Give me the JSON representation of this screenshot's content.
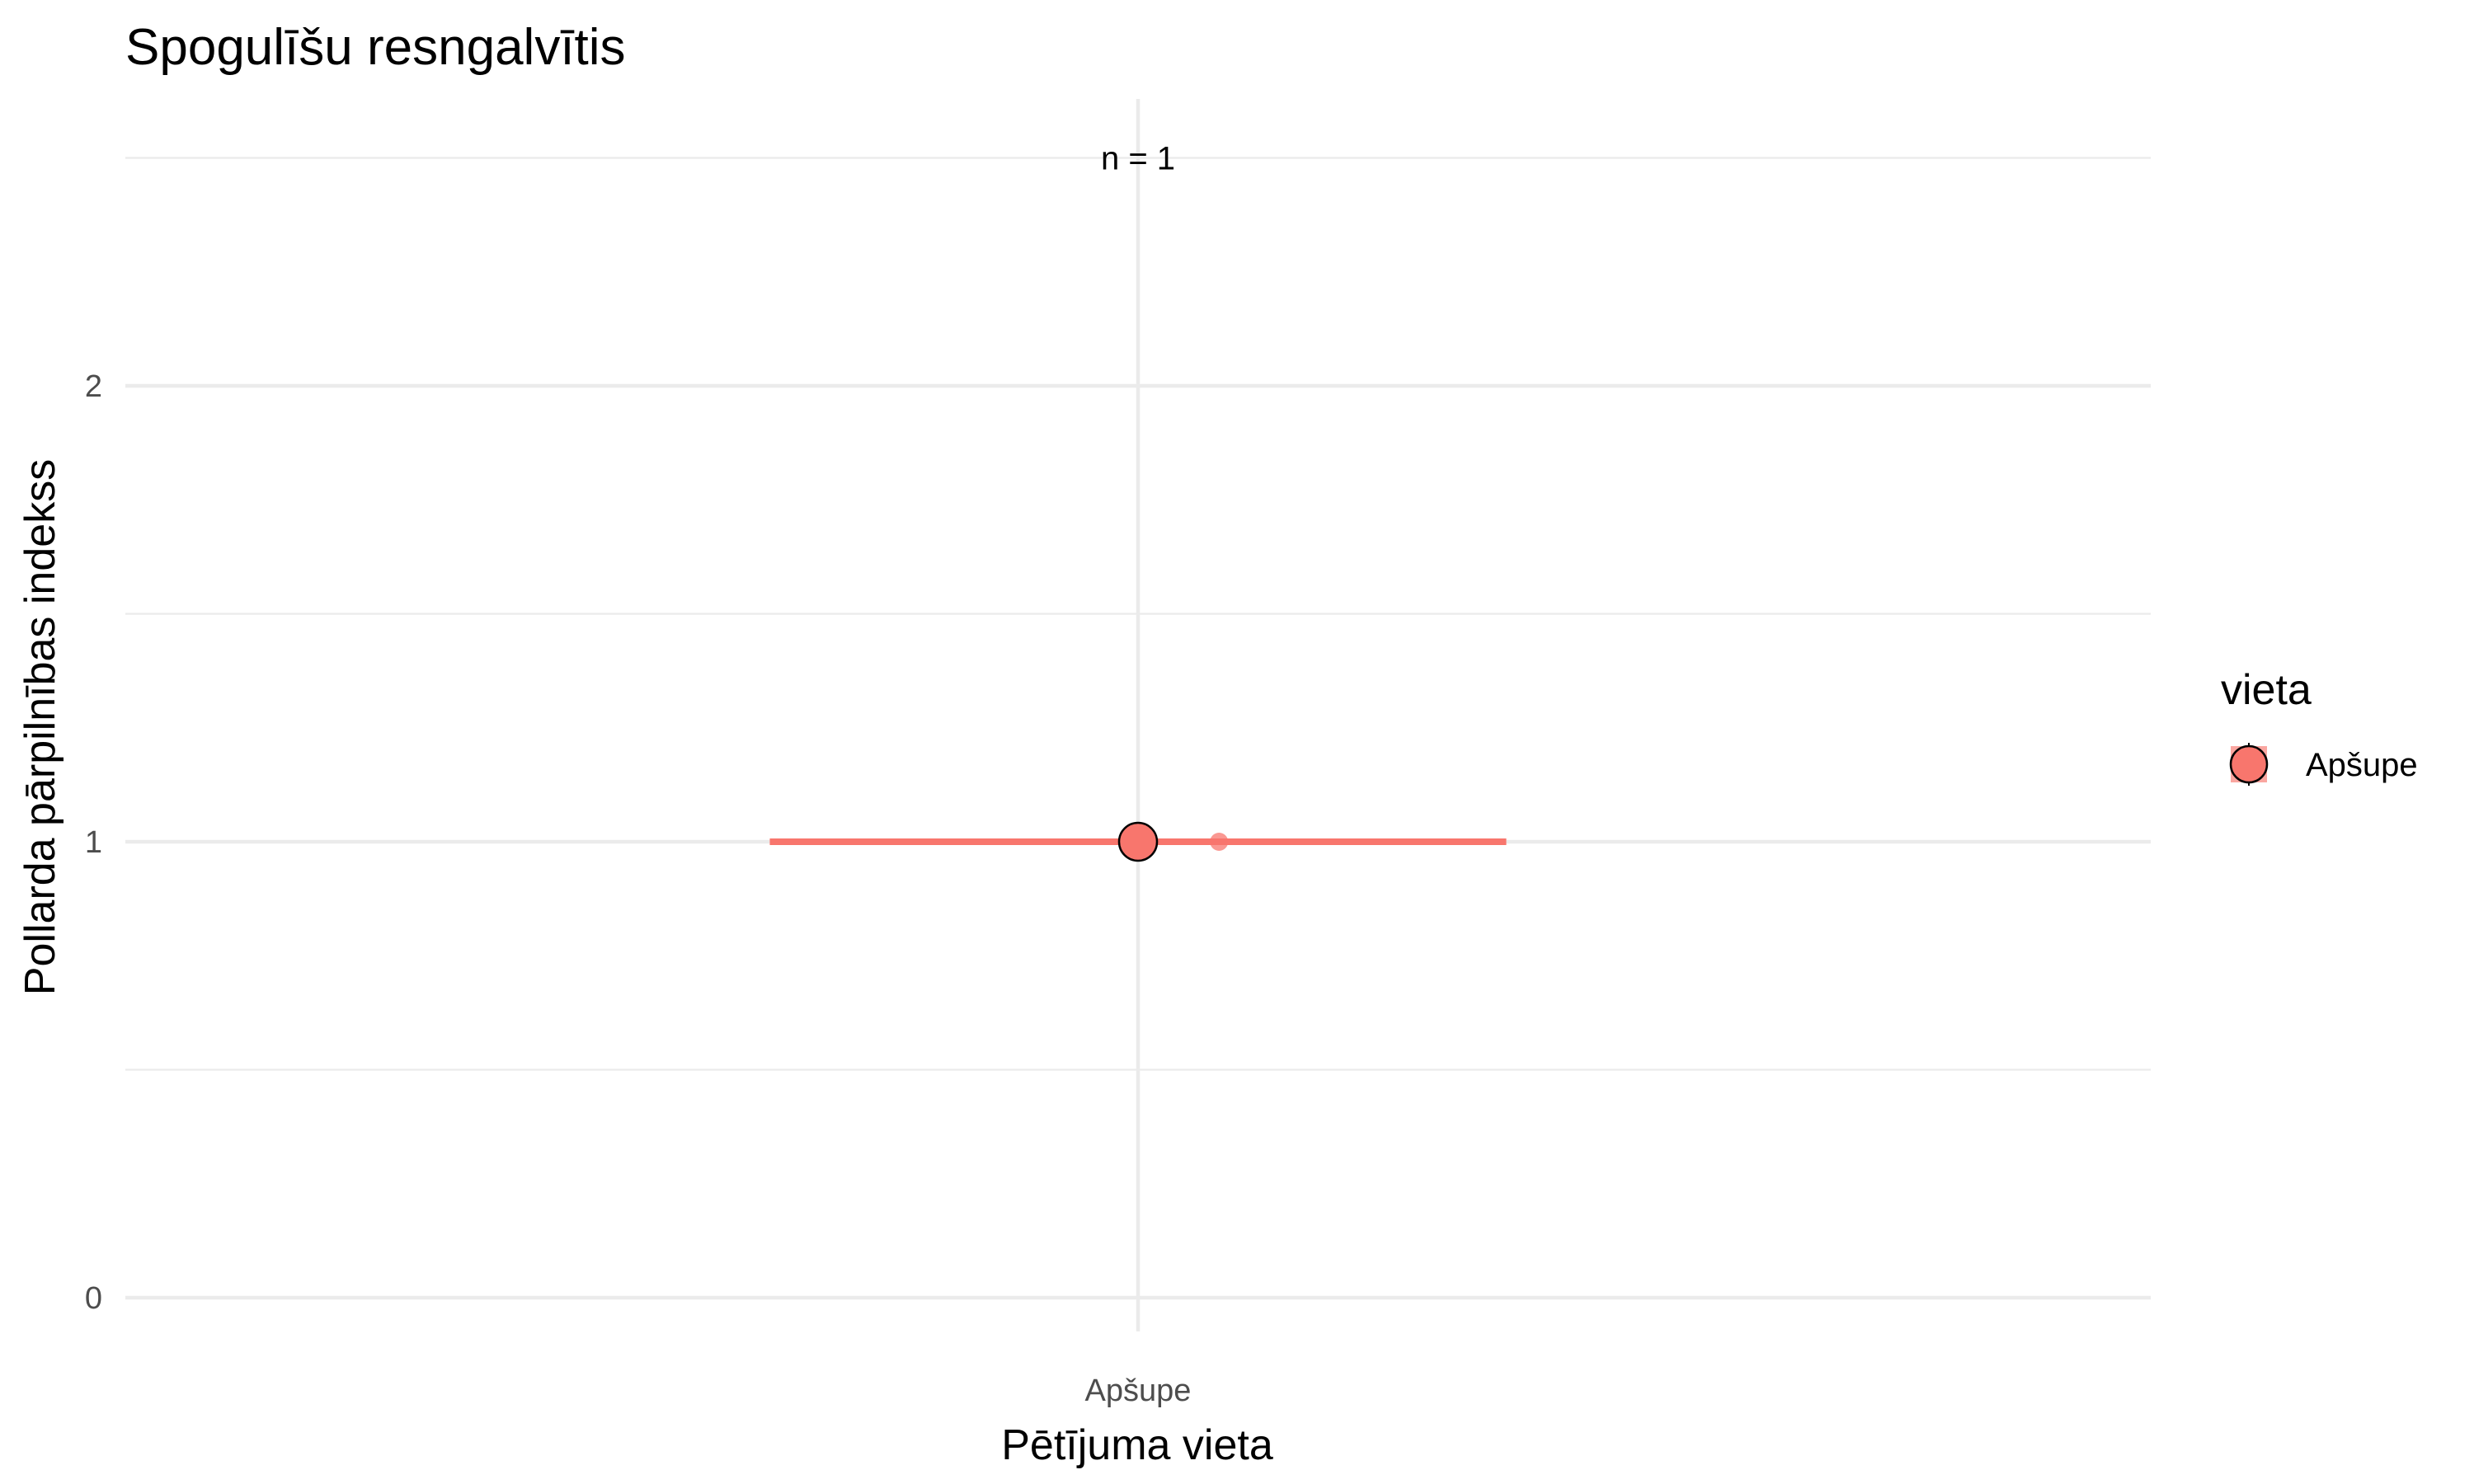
{
  "chart_data": {
    "type": "scatter",
    "title": "Spogulīšu resngalvītis",
    "xlabel": "Pētījuma vieta",
    "ylabel": "Pollarda pārpilnības indekss",
    "categories": [
      "Apšupe"
    ],
    "ylim": [
      -0.1,
      2.5
    ],
    "y_ticks": [
      0,
      1,
      2
    ],
    "y_minor_ticks": [
      0.5,
      1.5,
      2.5
    ],
    "grid": true,
    "colors": {
      "series": "#f8766d",
      "outline": "#000000",
      "grid": "#ebebeb",
      "tick_text": "#4d4d4d"
    },
    "series": [
      {
        "name": "Apšupe",
        "points": [
          {
            "x": "Apšupe",
            "y": 1,
            "role": "mean",
            "ymin": 1,
            "ymax": 1
          },
          {
            "x": "Apšupe",
            "y": 1,
            "role": "observation",
            "jitter": 0.04
          }
        ]
      }
    ],
    "annotations": [
      {
        "x": "Apšupe",
        "y": 2.5,
        "text": "n = 1"
      }
    ],
    "legend": {
      "title": "vieta",
      "position": "right",
      "items": [
        "Apšupe"
      ]
    }
  }
}
